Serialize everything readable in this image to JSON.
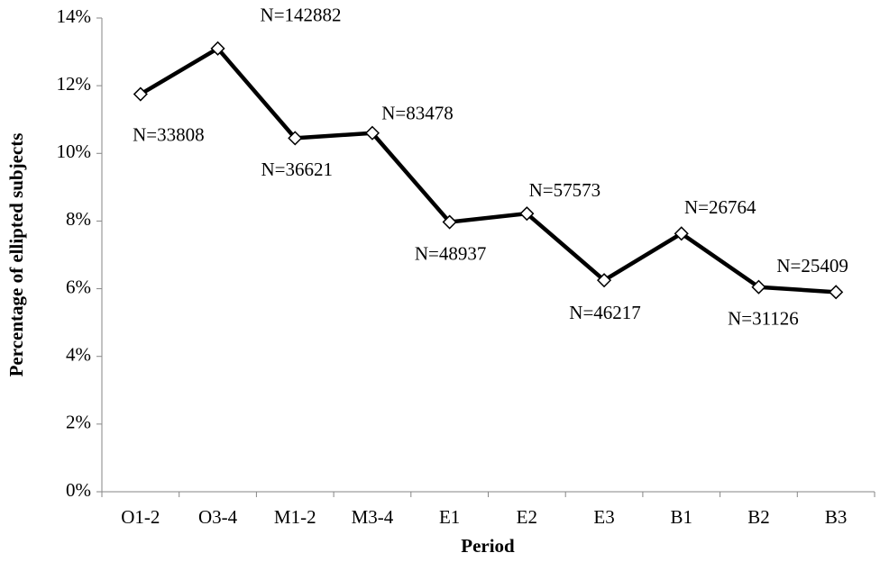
{
  "chart_data": {
    "type": "line",
    "x_label": "Period",
    "y_label": "Percentage of ellipted subjects",
    "categories": [
      "O1-2",
      "O3-4",
      "M1-2",
      "M3-4",
      "E1",
      "E2",
      "E3",
      "B1",
      "B2",
      "B3"
    ],
    "series": [
      {
        "name": "Percentage of ellipted subjects",
        "color": "#000000",
        "values": [
          11.75,
          13.1,
          10.45,
          10.6,
          7.97,
          8.22,
          6.25,
          7.63,
          6.05,
          5.9
        ]
      }
    ],
    "annotations": [
      "N=33808",
      "N=142882",
      "N=36621",
      "N=83478",
      "N=48937",
      "N=57573",
      "N=46217",
      "N=26764",
      "N=31126",
      "N=25409"
    ],
    "ylim": [
      0,
      14
    ],
    "yticks": [
      {
        "value": 0,
        "label": "0%"
      },
      {
        "value": 2,
        "label": "2%"
      },
      {
        "value": 4,
        "label": "4%"
      },
      {
        "value": 6,
        "label": "6%"
      },
      {
        "value": 8,
        "label": "8%"
      },
      {
        "value": 10,
        "label": "10%"
      },
      {
        "value": 12,
        "label": "12%"
      },
      {
        "value": 14,
        "label": "14%"
      }
    ],
    "grid": false
  }
}
